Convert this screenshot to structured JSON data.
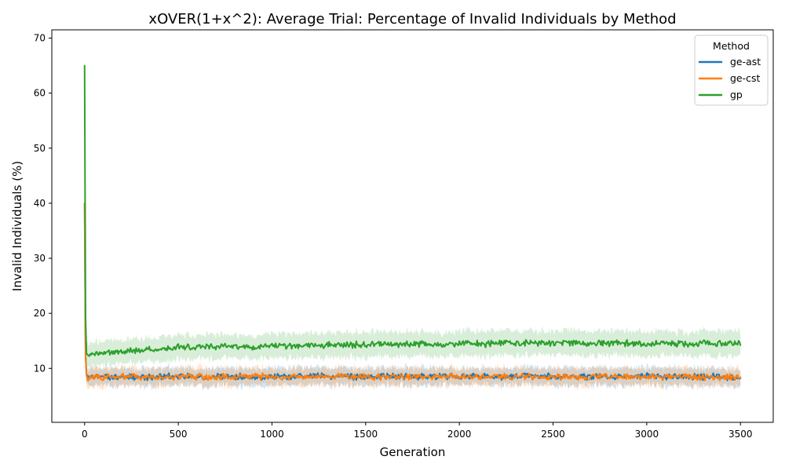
{
  "chart_data": {
    "type": "line",
    "title": "xOVER(1+x^2): Average Trial: Percentage of Invalid Individuals by Method",
    "xlabel": "Generation",
    "ylabel": "Invalid Individuals (%)",
    "xlim": [
      -175,
      3675
    ],
    "ylim": [
      0.2,
      71.5
    ],
    "xticks": [
      0,
      500,
      1000,
      1500,
      2000,
      2500,
      3000,
      3500
    ],
    "yticks": [
      10,
      20,
      30,
      40,
      50,
      60,
      70
    ],
    "grid": false,
    "legend": {
      "title": "Method",
      "placement": "top-right"
    },
    "series": [
      {
        "name": "ge-ast",
        "color": "#1f77b4",
        "points": [
          [
            0,
            40
          ],
          [
            2,
            28
          ],
          [
            4,
            15
          ],
          [
            6,
            10.5
          ],
          [
            8,
            9
          ],
          [
            15,
            8.3
          ],
          [
            50,
            8.5
          ],
          [
            100,
            8.4
          ],
          [
            200,
            8.5
          ],
          [
            300,
            8.4
          ],
          [
            400,
            8.5
          ],
          [
            500,
            8.6
          ],
          [
            600,
            8.4
          ],
          [
            700,
            8.5
          ],
          [
            800,
            8.5
          ],
          [
            900,
            8.4
          ],
          [
            1000,
            8.5
          ],
          [
            1200,
            8.6
          ],
          [
            1400,
            8.5
          ],
          [
            1600,
            8.6
          ],
          [
            1800,
            8.5
          ],
          [
            2000,
            8.6
          ],
          [
            2200,
            8.5
          ],
          [
            2400,
            8.6
          ],
          [
            2600,
            8.5
          ],
          [
            2800,
            8.5
          ],
          [
            3000,
            8.6
          ],
          [
            3200,
            8.5
          ],
          [
            3400,
            8.5
          ],
          [
            3500,
            8.4
          ]
        ]
      },
      {
        "name": "ge-cst",
        "color": "#ff7f0e",
        "points": [
          [
            0,
            40
          ],
          [
            2,
            27
          ],
          [
            4,
            14
          ],
          [
            6,
            10
          ],
          [
            8,
            9
          ],
          [
            15,
            8.3
          ],
          [
            50,
            8.6
          ],
          [
            100,
            8.3
          ],
          [
            200,
            8.4
          ],
          [
            300,
            8.5
          ],
          [
            400,
            8.4
          ],
          [
            500,
            8.5
          ],
          [
            600,
            8.5
          ],
          [
            700,
            8.4
          ],
          [
            800,
            8.5
          ],
          [
            900,
            8.5
          ],
          [
            1000,
            8.5
          ],
          [
            1200,
            8.5
          ],
          [
            1400,
            8.6
          ],
          [
            1600,
            8.5
          ],
          [
            1800,
            8.5
          ],
          [
            2000,
            8.5
          ],
          [
            2200,
            8.5
          ],
          [
            2400,
            8.5
          ],
          [
            2600,
            8.4
          ],
          [
            2800,
            8.5
          ],
          [
            3000,
            8.5
          ],
          [
            3200,
            8.4
          ],
          [
            3400,
            8.4
          ],
          [
            3500,
            8.3
          ]
        ]
      },
      {
        "name": "gp",
        "color": "#2ca02c",
        "points": [
          [
            0,
            65
          ],
          [
            2,
            45
          ],
          [
            4,
            25
          ],
          [
            6,
            14
          ],
          [
            8,
            12.7
          ],
          [
            20,
            12.6
          ],
          [
            50,
            12.7
          ],
          [
            100,
            12.8
          ],
          [
            150,
            12.9
          ],
          [
            200,
            13.2
          ],
          [
            300,
            13.4
          ],
          [
            400,
            13.6
          ],
          [
            500,
            13.8
          ],
          [
            600,
            13.9
          ],
          [
            700,
            14.0
          ],
          [
            800,
            13.9
          ],
          [
            900,
            13.8
          ],
          [
            1000,
            14.1
          ],
          [
            1200,
            14.2
          ],
          [
            1400,
            14.3
          ],
          [
            1600,
            14.3
          ],
          [
            1800,
            14.4
          ],
          [
            2000,
            14.5
          ],
          [
            2200,
            14.5
          ],
          [
            2400,
            14.6
          ],
          [
            2600,
            14.6
          ],
          [
            2800,
            14.6
          ],
          [
            3000,
            14.5
          ],
          [
            3200,
            14.5
          ],
          [
            3400,
            14.6
          ],
          [
            3500,
            14.6
          ]
        ]
      }
    ]
  }
}
